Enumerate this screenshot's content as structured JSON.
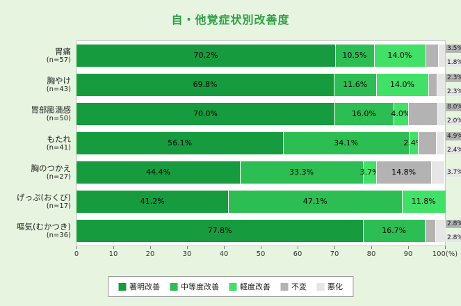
{
  "chart_data": {
    "type": "bar",
    "stacked": true,
    "orientation": "horizontal",
    "title": "自・他覚症状別改善度",
    "xlabel": "",
    "ylabel": "",
    "xlim": [
      0,
      100
    ],
    "x_ticks": [
      0,
      10,
      20,
      30,
      40,
      50,
      60,
      70,
      80,
      90,
      100
    ],
    "x_unit": "(%)",
    "grid": false,
    "legend_position": "bottom",
    "legend": [
      "著明改善",
      "中等度改善",
      "軽度改善",
      "不変",
      "悪化"
    ],
    "colors": {
      "著明改善": "#169b3e",
      "中等度改善": "#2cbe52",
      "軽度改善": "#41e066",
      "不変": "#b3b3b3",
      "悪化": "#e6e6e6"
    },
    "background_color": "#e7f5e0",
    "title_color": "#2e9e44",
    "categories": [
      {
        "label": "胃痛",
        "n": "(n=57)",
        "values": [
          70.2,
          10.5,
          14.0,
          3.5,
          1.8
        ]
      },
      {
        "label": "胸やけ",
        "n": "(n=43)",
        "values": [
          69.8,
          11.6,
          14.0,
          2.3,
          2.3
        ]
      },
      {
        "label": "胃部膨満感",
        "n": "(n=50)",
        "values": [
          70.0,
          16.0,
          4.0,
          8.0,
          2.0
        ]
      },
      {
        "label": "もたれ",
        "n": "(n=41)",
        "values": [
          56.1,
          34.1,
          2.4,
          4.9,
          2.4
        ]
      },
      {
        "label": "胸のつかえ",
        "n": "(n=27)",
        "values": [
          44.4,
          33.3,
          3.7,
          14.8,
          3.7
        ]
      },
      {
        "label": "げっぷ(おくび)",
        "n": "(n=17)",
        "values": [
          41.2,
          47.1,
          11.8,
          0,
          0
        ]
      },
      {
        "label": "嘔気(むかつき)",
        "n": "(n=36)",
        "values": [
          77.8,
          16.7,
          0,
          2.8,
          2.8
        ]
      }
    ]
  }
}
